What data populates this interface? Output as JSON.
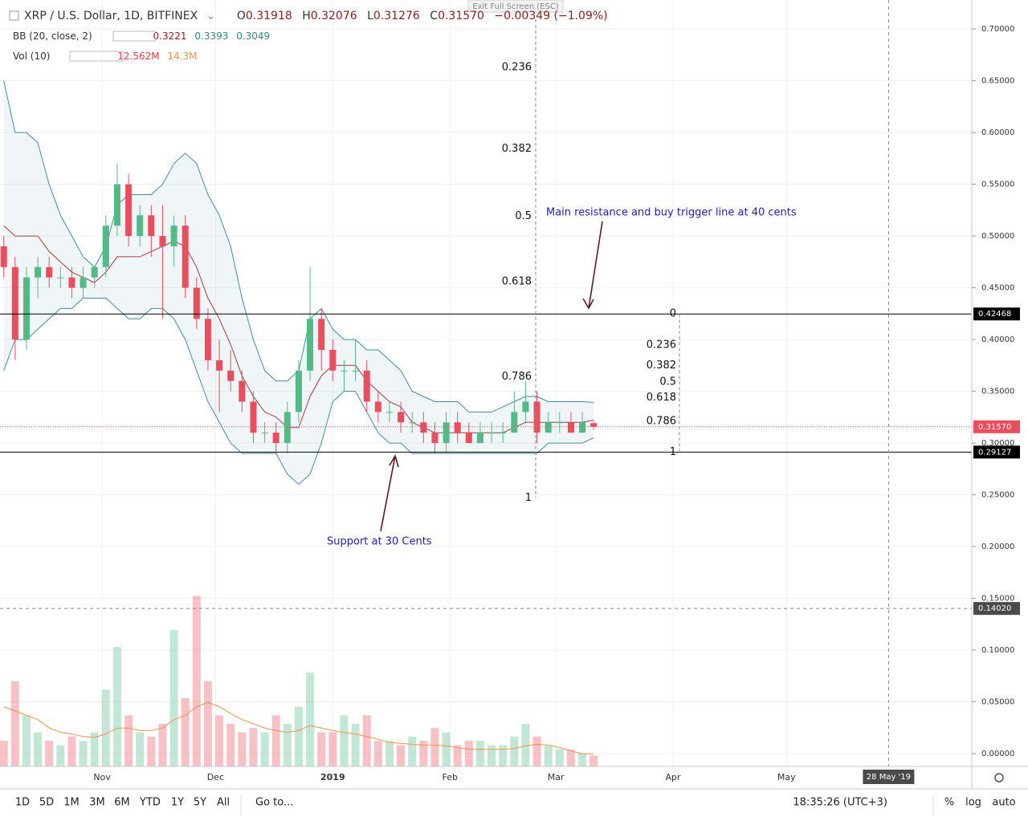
{
  "chart_data": {
    "type": "candlestick",
    "x": [
      0,
      3,
      6,
      9,
      12,
      15,
      18,
      21,
      24,
      27,
      30,
      33,
      36,
      39,
      42,
      45,
      48,
      51,
      54,
      57,
      60,
      63,
      66,
      69,
      72,
      75,
      78,
      81,
      84,
      87,
      90,
      93,
      96,
      99,
      102,
      105,
      108,
      111,
      114,
      117,
      120,
      123,
      126,
      129,
      132,
      135,
      138,
      141,
      144,
      147,
      150,
      153,
      156
    ],
    "open": [
      0.49,
      0.47,
      0.4,
      0.46,
      0.47,
      0.46,
      0.46,
      0.45,
      0.46,
      0.47,
      0.51,
      0.55,
      0.5,
      0.52,
      0.5,
      0.49,
      0.51,
      0.45,
      0.42,
      0.38,
      0.37,
      0.36,
      0.34,
      0.31,
      0.31,
      0.3,
      0.33,
      0.37,
      0.42,
      0.39,
      0.37,
      0.37,
      0.37,
      0.34,
      0.33,
      0.33,
      0.32,
      0.32,
      0.31,
      0.3,
      0.32,
      0.31,
      0.3,
      0.31,
      0.31,
      0.31,
      0.33,
      0.34,
      0.31,
      0.32,
      0.32,
      0.31,
      0.31918
    ],
    "high": [
      0.5,
      0.48,
      0.47,
      0.48,
      0.48,
      0.47,
      0.47,
      0.47,
      0.47,
      0.52,
      0.57,
      0.56,
      0.53,
      0.53,
      0.53,
      0.52,
      0.52,
      0.46,
      0.43,
      0.4,
      0.39,
      0.37,
      0.35,
      0.32,
      0.32,
      0.34,
      0.38,
      0.47,
      0.43,
      0.4,
      0.38,
      0.4,
      0.38,
      0.35,
      0.34,
      0.34,
      0.33,
      0.33,
      0.32,
      0.33,
      0.33,
      0.32,
      0.32,
      0.32,
      0.32,
      0.35,
      0.36,
      0.35,
      0.33,
      0.33,
      0.33,
      0.33,
      0.32076
    ],
    "low": [
      0.46,
      0.38,
      0.39,
      0.44,
      0.45,
      0.45,
      0.44,
      0.44,
      0.45,
      0.46,
      0.5,
      0.49,
      0.49,
      0.48,
      0.42,
      0.47,
      0.44,
      0.41,
      0.37,
      0.33,
      0.35,
      0.33,
      0.3,
      0.3,
      0.29,
      0.29,
      0.32,
      0.36,
      0.37,
      0.36,
      0.35,
      0.36,
      0.33,
      0.32,
      0.32,
      0.31,
      0.31,
      0.3,
      0.29,
      0.29,
      0.3,
      0.3,
      0.3,
      0.3,
      0.3,
      0.31,
      0.32,
      0.3,
      0.31,
      0.31,
      0.31,
      0.31,
      0.31276
    ],
    "close": [
      0.47,
      0.4,
      0.46,
      0.47,
      0.46,
      0.46,
      0.45,
      0.46,
      0.47,
      0.51,
      0.55,
      0.5,
      0.52,
      0.5,
      0.49,
      0.51,
      0.45,
      0.42,
      0.38,
      0.37,
      0.36,
      0.34,
      0.31,
      0.31,
      0.3,
      0.33,
      0.37,
      0.42,
      0.39,
      0.37,
      0.37,
      0.37,
      0.34,
      0.33,
      0.33,
      0.32,
      0.32,
      0.31,
      0.3,
      0.32,
      0.31,
      0.3,
      0.31,
      0.31,
      0.31,
      0.33,
      0.34,
      0.31,
      0.32,
      0.32,
      0.31,
      0.32,
      0.3157
    ],
    "bb_upper": [
      0.65,
      0.6,
      0.6,
      0.59,
      0.55,
      0.52,
      0.5,
      0.48,
      0.47,
      0.49,
      0.53,
      0.54,
      0.54,
      0.54,
      0.55,
      0.57,
      0.58,
      0.57,
      0.54,
      0.52,
      0.49,
      0.44,
      0.4,
      0.37,
      0.36,
      0.36,
      0.37,
      0.42,
      0.43,
      0.41,
      0.4,
      0.4,
      0.39,
      0.39,
      0.38,
      0.37,
      0.35,
      0.345,
      0.34,
      0.34,
      0.34,
      0.33,
      0.33,
      0.33,
      0.335,
      0.34,
      0.345,
      0.345,
      0.34,
      0.34,
      0.34,
      0.34,
      0.3393
    ],
    "bb_basis": [
      0.51,
      0.5,
      0.5,
      0.5,
      0.485,
      0.475,
      0.465,
      0.46,
      0.455,
      0.465,
      0.48,
      0.48,
      0.48,
      0.485,
      0.49,
      0.495,
      0.49,
      0.47,
      0.44,
      0.42,
      0.395,
      0.365,
      0.345,
      0.33,
      0.325,
      0.315,
      0.315,
      0.345,
      0.365,
      0.375,
      0.375,
      0.375,
      0.36,
      0.35,
      0.34,
      0.335,
      0.32,
      0.315,
      0.31,
      0.31,
      0.31,
      0.31,
      0.31,
      0.31,
      0.31,
      0.315,
      0.32,
      0.32,
      0.32,
      0.32,
      0.32,
      0.32,
      0.3221
    ],
    "bb_lower": [
      0.37,
      0.4,
      0.4,
      0.41,
      0.42,
      0.43,
      0.43,
      0.44,
      0.44,
      0.44,
      0.43,
      0.42,
      0.42,
      0.43,
      0.43,
      0.42,
      0.4,
      0.37,
      0.34,
      0.32,
      0.3,
      0.29,
      0.29,
      0.29,
      0.29,
      0.27,
      0.26,
      0.27,
      0.3,
      0.34,
      0.35,
      0.35,
      0.33,
      0.31,
      0.3,
      0.3,
      0.29,
      0.29,
      0.29,
      0.29,
      0.29,
      0.29,
      0.29,
      0.29,
      0.29,
      0.29,
      0.29,
      0.29,
      0.3,
      0.3,
      0.3,
      0.3,
      0.3049
    ],
    "volume": [
      30,
      100,
      60,
      40,
      30,
      25,
      35,
      30,
      40,
      90,
      140,
      60,
      40,
      35,
      50,
      160,
      80,
      200,
      100,
      60,
      50,
      40,
      45,
      40,
      60,
      50,
      70,
      110,
      40,
      40,
      60,
      50,
      60,
      30,
      30,
      25,
      35,
      30,
      45,
      40,
      25,
      30,
      30,
      25,
      25,
      35,
      50,
      35,
      25,
      20,
      20,
      15,
      12.562
    ],
    "volume_ma": [
      70,
      65,
      60,
      55,
      45,
      40,
      38,
      35,
      34,
      38,
      45,
      45,
      42,
      42,
      45,
      55,
      60,
      70,
      75,
      70,
      62,
      55,
      50,
      45,
      42,
      40,
      42,
      48,
      45,
      42,
      40,
      38,
      35,
      32,
      28,
      27,
      26,
      25,
      25,
      24,
      22,
      20,
      20,
      20,
      20,
      21,
      24,
      26,
      25,
      22,
      18,
      15,
      14.3
    ],
    "up_color": "#53b987",
    "down_color": "#eb4d5c",
    "band_color": "#3f8ea3",
    "basis_color": "#a13b3b",
    "volume_ma_color": "#f0924a",
    "xlim": [
      -1,
      256
    ],
    "xticks": [
      {
        "value": 26,
        "label": "Nov"
      },
      {
        "value": 56,
        "label": "Dec"
      },
      {
        "value": 87,
        "label": "2019"
      },
      {
        "value": 118,
        "label": "Feb"
      },
      {
        "value": 146,
        "label": "Mar"
      },
      {
        "value": 177,
        "label": "Apr"
      },
      {
        "value": 207,
        "label": "May"
      }
    ],
    "ylim": [
      -0.0124,
      0.728
    ],
    "yticks": [
      {
        "value": 0,
        "label": "0.00000"
      },
      {
        "value": 0.05,
        "label": "0.05000"
      },
      {
        "value": 0.1,
        "label": "0.10000"
      },
      {
        "value": 0.15,
        "label": "0.15000"
      },
      {
        "value": 0.2,
        "label": "0.20000"
      },
      {
        "value": 0.25,
        "label": "0.25000"
      },
      {
        "value": 0.3,
        "label": "0.30000"
      },
      {
        "value": 0.35,
        "label": "0.35000"
      },
      {
        "value": 0.4,
        "label": "0.40000"
      },
      {
        "value": 0.45,
        "label": "0.45000"
      },
      {
        "value": 0.5,
        "label": "0.50000"
      },
      {
        "value": 0.55,
        "label": "0.55000"
      },
      {
        "value": 0.6,
        "label": "0.60000"
      },
      {
        "value": 0.65,
        "label": "0.65000"
      },
      {
        "value": 0.7,
        "label": "0.70000"
      }
    ],
    "vlim": [
      0,
      240
    ],
    "grid": true,
    "resistance": 0.42468,
    "support": 0.29127,
    "last_price": {
      "value": 0.3157,
      "label": "0.31570"
    },
    "crosshair_price": {
      "value": 0.1402,
      "label": "0.14020"
    },
    "crosshair_date": {
      "value": 234,
      "label": "28 May '19"
    },
    "fib_left": {
      "levels": [
        0.236,
        0.382,
        0.5,
        0.618,
        0.786,
        1
      ],
      "prices": [
        0.663,
        0.584,
        0.519,
        0.456,
        0.364,
        0.247
      ]
    },
    "fib_right": {
      "levels": [
        0,
        0.236,
        0.382,
        0.5,
        0.618,
        0.786,
        1
      ],
      "prices": [
        0.42468,
        0.3946,
        0.375,
        0.359,
        0.344,
        0.321,
        0.29127
      ]
    },
    "annotations": [
      "Main resistance and buy trigger line at 40 cents",
      "Support at 30 Cents"
    ]
  },
  "ui": {
    "exit_fullscreen": "Exit Full Screen (ESC)",
    "symbol": "XRP / U.S. Dollar, 1D, BITFINEX",
    "ohlc": [
      {
        "key": "O",
        "value": "0.31918"
      },
      {
        "key": "H",
        "value": "0.32076"
      },
      {
        "key": "L",
        "value": "0.31276"
      },
      {
        "key": "C",
        "value": "0.31570"
      }
    ],
    "change": "−0.00349 (−1.09%)",
    "bb_label": "BB (20, close, 2)",
    "bb_values": [
      "0.3221",
      "0.3393",
      "0.3049"
    ],
    "vol_label": "Vol (10)",
    "vol_values": [
      "12.562M",
      "14.3M"
    ],
    "ranges": [
      "1D",
      "5D",
      "1M",
      "3M",
      "6M",
      "YTD",
      "1Y",
      "5Y",
      "All"
    ],
    "goto": "Go to...",
    "clock": "18:35:26 (UTC+3)",
    "scale_buttons": [
      "%",
      "log",
      "auto"
    ]
  }
}
